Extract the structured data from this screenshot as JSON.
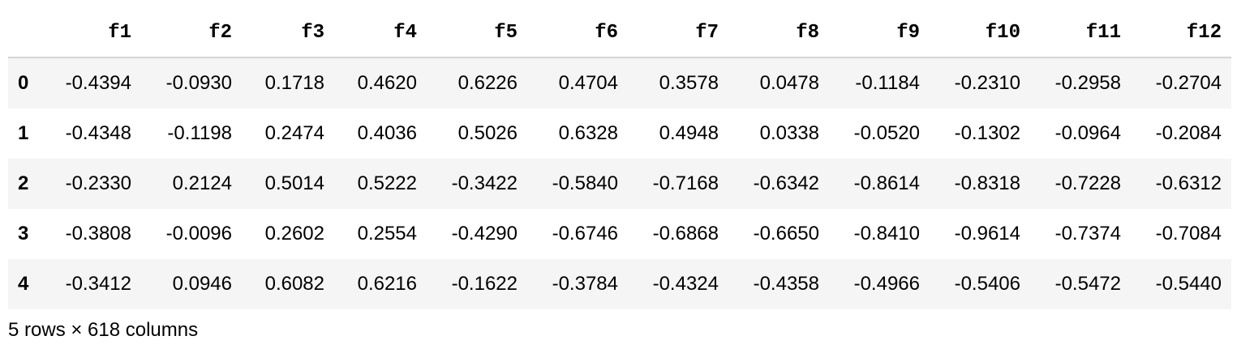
{
  "table": {
    "columns": [
      "f1",
      "f2",
      "f3",
      "f4",
      "f5",
      "f6",
      "f7",
      "f8",
      "f9",
      "f10",
      "f11",
      "f12"
    ],
    "rows": [
      {
        "index": "0",
        "cells": [
          "-0.4394",
          "-0.0930",
          "0.1718",
          "0.4620",
          "0.6226",
          "0.4704",
          "0.3578",
          "0.0478",
          "-0.1184",
          "-0.2310",
          "-0.2958",
          "-0.2704"
        ]
      },
      {
        "index": "1",
        "cells": [
          "-0.4348",
          "-0.1198",
          "0.2474",
          "0.4036",
          "0.5026",
          "0.6328",
          "0.4948",
          "0.0338",
          "-0.0520",
          "-0.1302",
          "-0.0964",
          "-0.2084"
        ]
      },
      {
        "index": "2",
        "cells": [
          "-0.2330",
          "0.2124",
          "0.5014",
          "0.5222",
          "-0.3422",
          "-0.5840",
          "-0.7168",
          "-0.6342",
          "-0.8614",
          "-0.8318",
          "-0.7228",
          "-0.6312"
        ]
      },
      {
        "index": "3",
        "cells": [
          "-0.3808",
          "-0.0096",
          "0.2602",
          "0.2554",
          "-0.4290",
          "-0.6746",
          "-0.6868",
          "-0.6650",
          "-0.8410",
          "-0.9614",
          "-0.7374",
          "-0.7084"
        ]
      },
      {
        "index": "4",
        "cells": [
          "-0.3412",
          "0.0946",
          "0.6082",
          "0.6216",
          "-0.1622",
          "-0.3784",
          "-0.4324",
          "-0.4358",
          "-0.4966",
          "-0.5406",
          "-0.5472",
          "-0.5440"
        ]
      }
    ]
  },
  "footer": {
    "shape_text": "5 rows × 618 columns"
  }
}
